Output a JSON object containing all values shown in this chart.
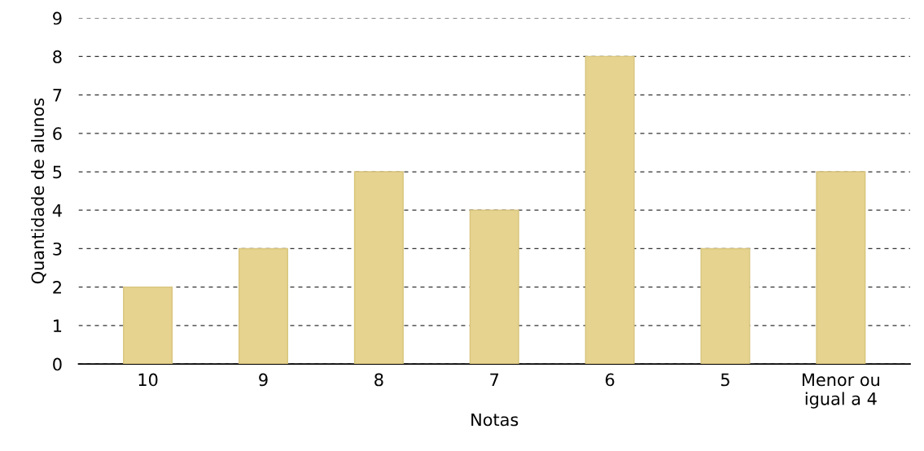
{
  "chart_data": {
    "type": "bar",
    "xlabel": "Notas",
    "ylabel": "Quantidade de alunos",
    "categories": [
      "10",
      "9",
      "8",
      "7",
      "6",
      "5",
      "Menor ou\nigual a 4"
    ],
    "values": [
      2,
      3,
      5,
      4,
      8,
      3,
      5
    ],
    "color": "#e5d38f",
    "ylim": [
      0,
      9
    ],
    "yticks": [
      0,
      1,
      2,
      3,
      4,
      5,
      6,
      7,
      8,
      9
    ],
    "grid": "y",
    "legend": false
  }
}
